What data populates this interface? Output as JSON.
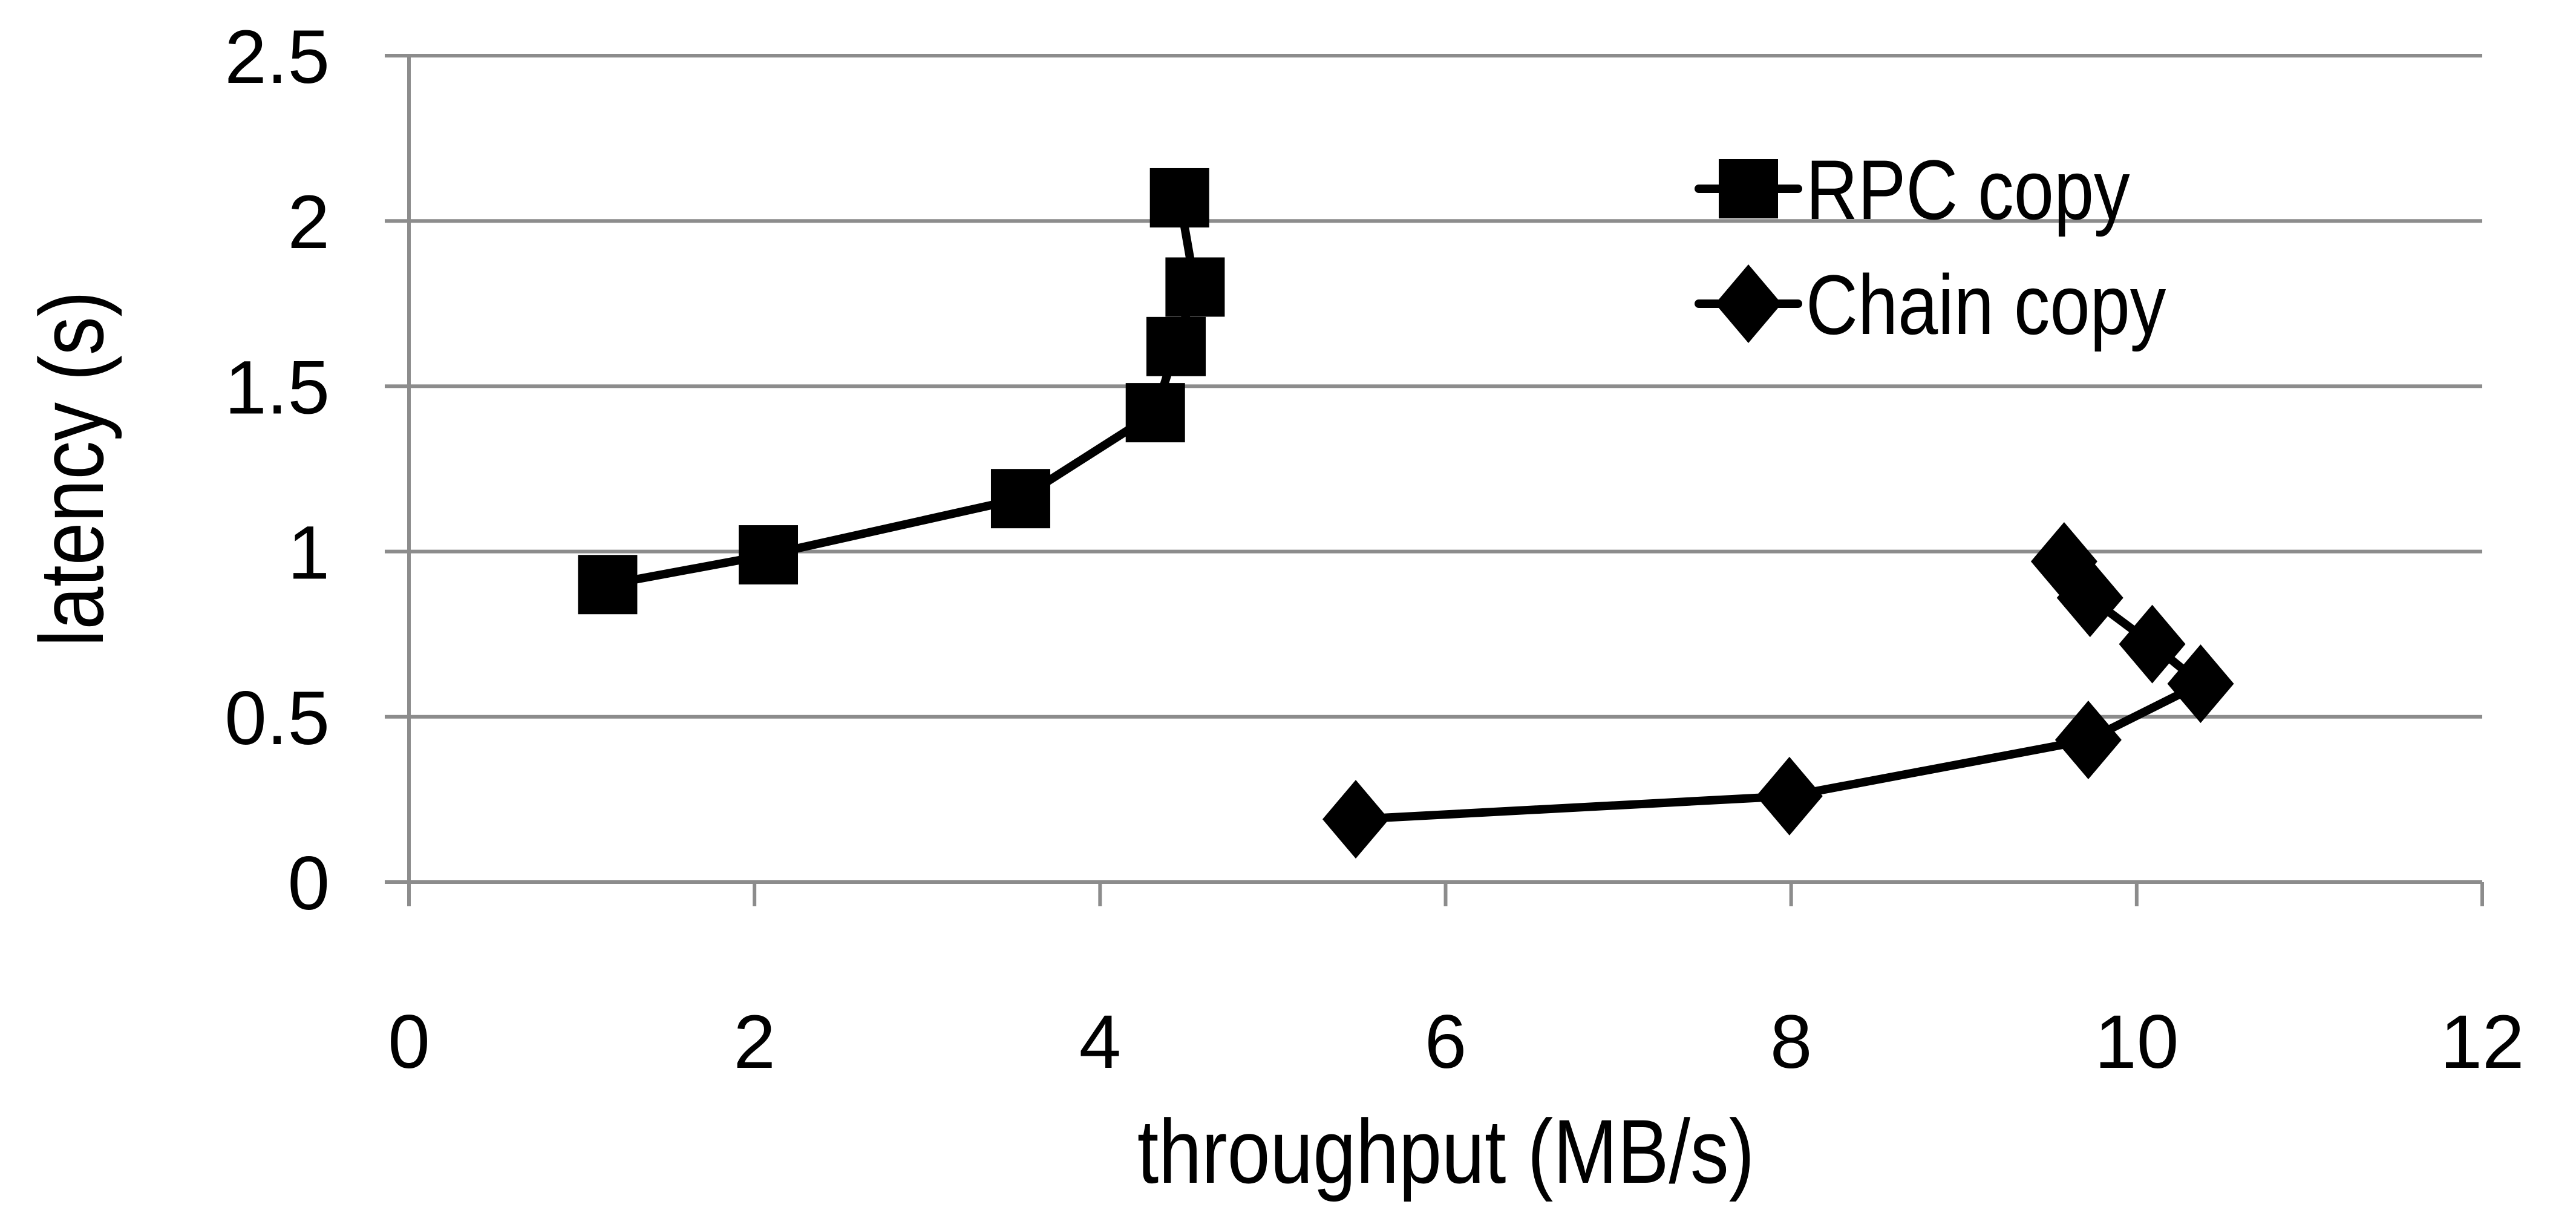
{
  "chart_data": {
    "type": "line",
    "title": "",
    "xlabel": "throughput (MB/s)",
    "ylabel": "latency (s)",
    "xlim": [
      0,
      12
    ],
    "ylim": [
      0,
      2.5
    ],
    "xticks": [
      "0",
      "2",
      "4",
      "6",
      "8",
      "10",
      "12"
    ],
    "yticks": [
      "0",
      "0.5",
      "1",
      "1.5",
      "2",
      "2.5"
    ],
    "grid": "horizontal",
    "legend_position": "top-right",
    "series": [
      {
        "name": "RPC copy",
        "marker": "square",
        "color": "#000000",
        "x": [
          1.15,
          2.08,
          3.54,
          4.32,
          4.44,
          4.55,
          4.46
        ],
        "y": [
          0.9,
          0.99,
          1.16,
          1.42,
          1.62,
          1.8,
          2.07
        ]
      },
      {
        "name": "Chain copy",
        "marker": "diamond",
        "color": "#000000",
        "x": [
          5.48,
          7.99,
          9.72,
          10.37,
          10.09,
          9.73,
          9.58
        ],
        "y": [
          0.19,
          0.26,
          0.43,
          0.6,
          0.72,
          0.86,
          0.97
        ]
      }
    ]
  }
}
